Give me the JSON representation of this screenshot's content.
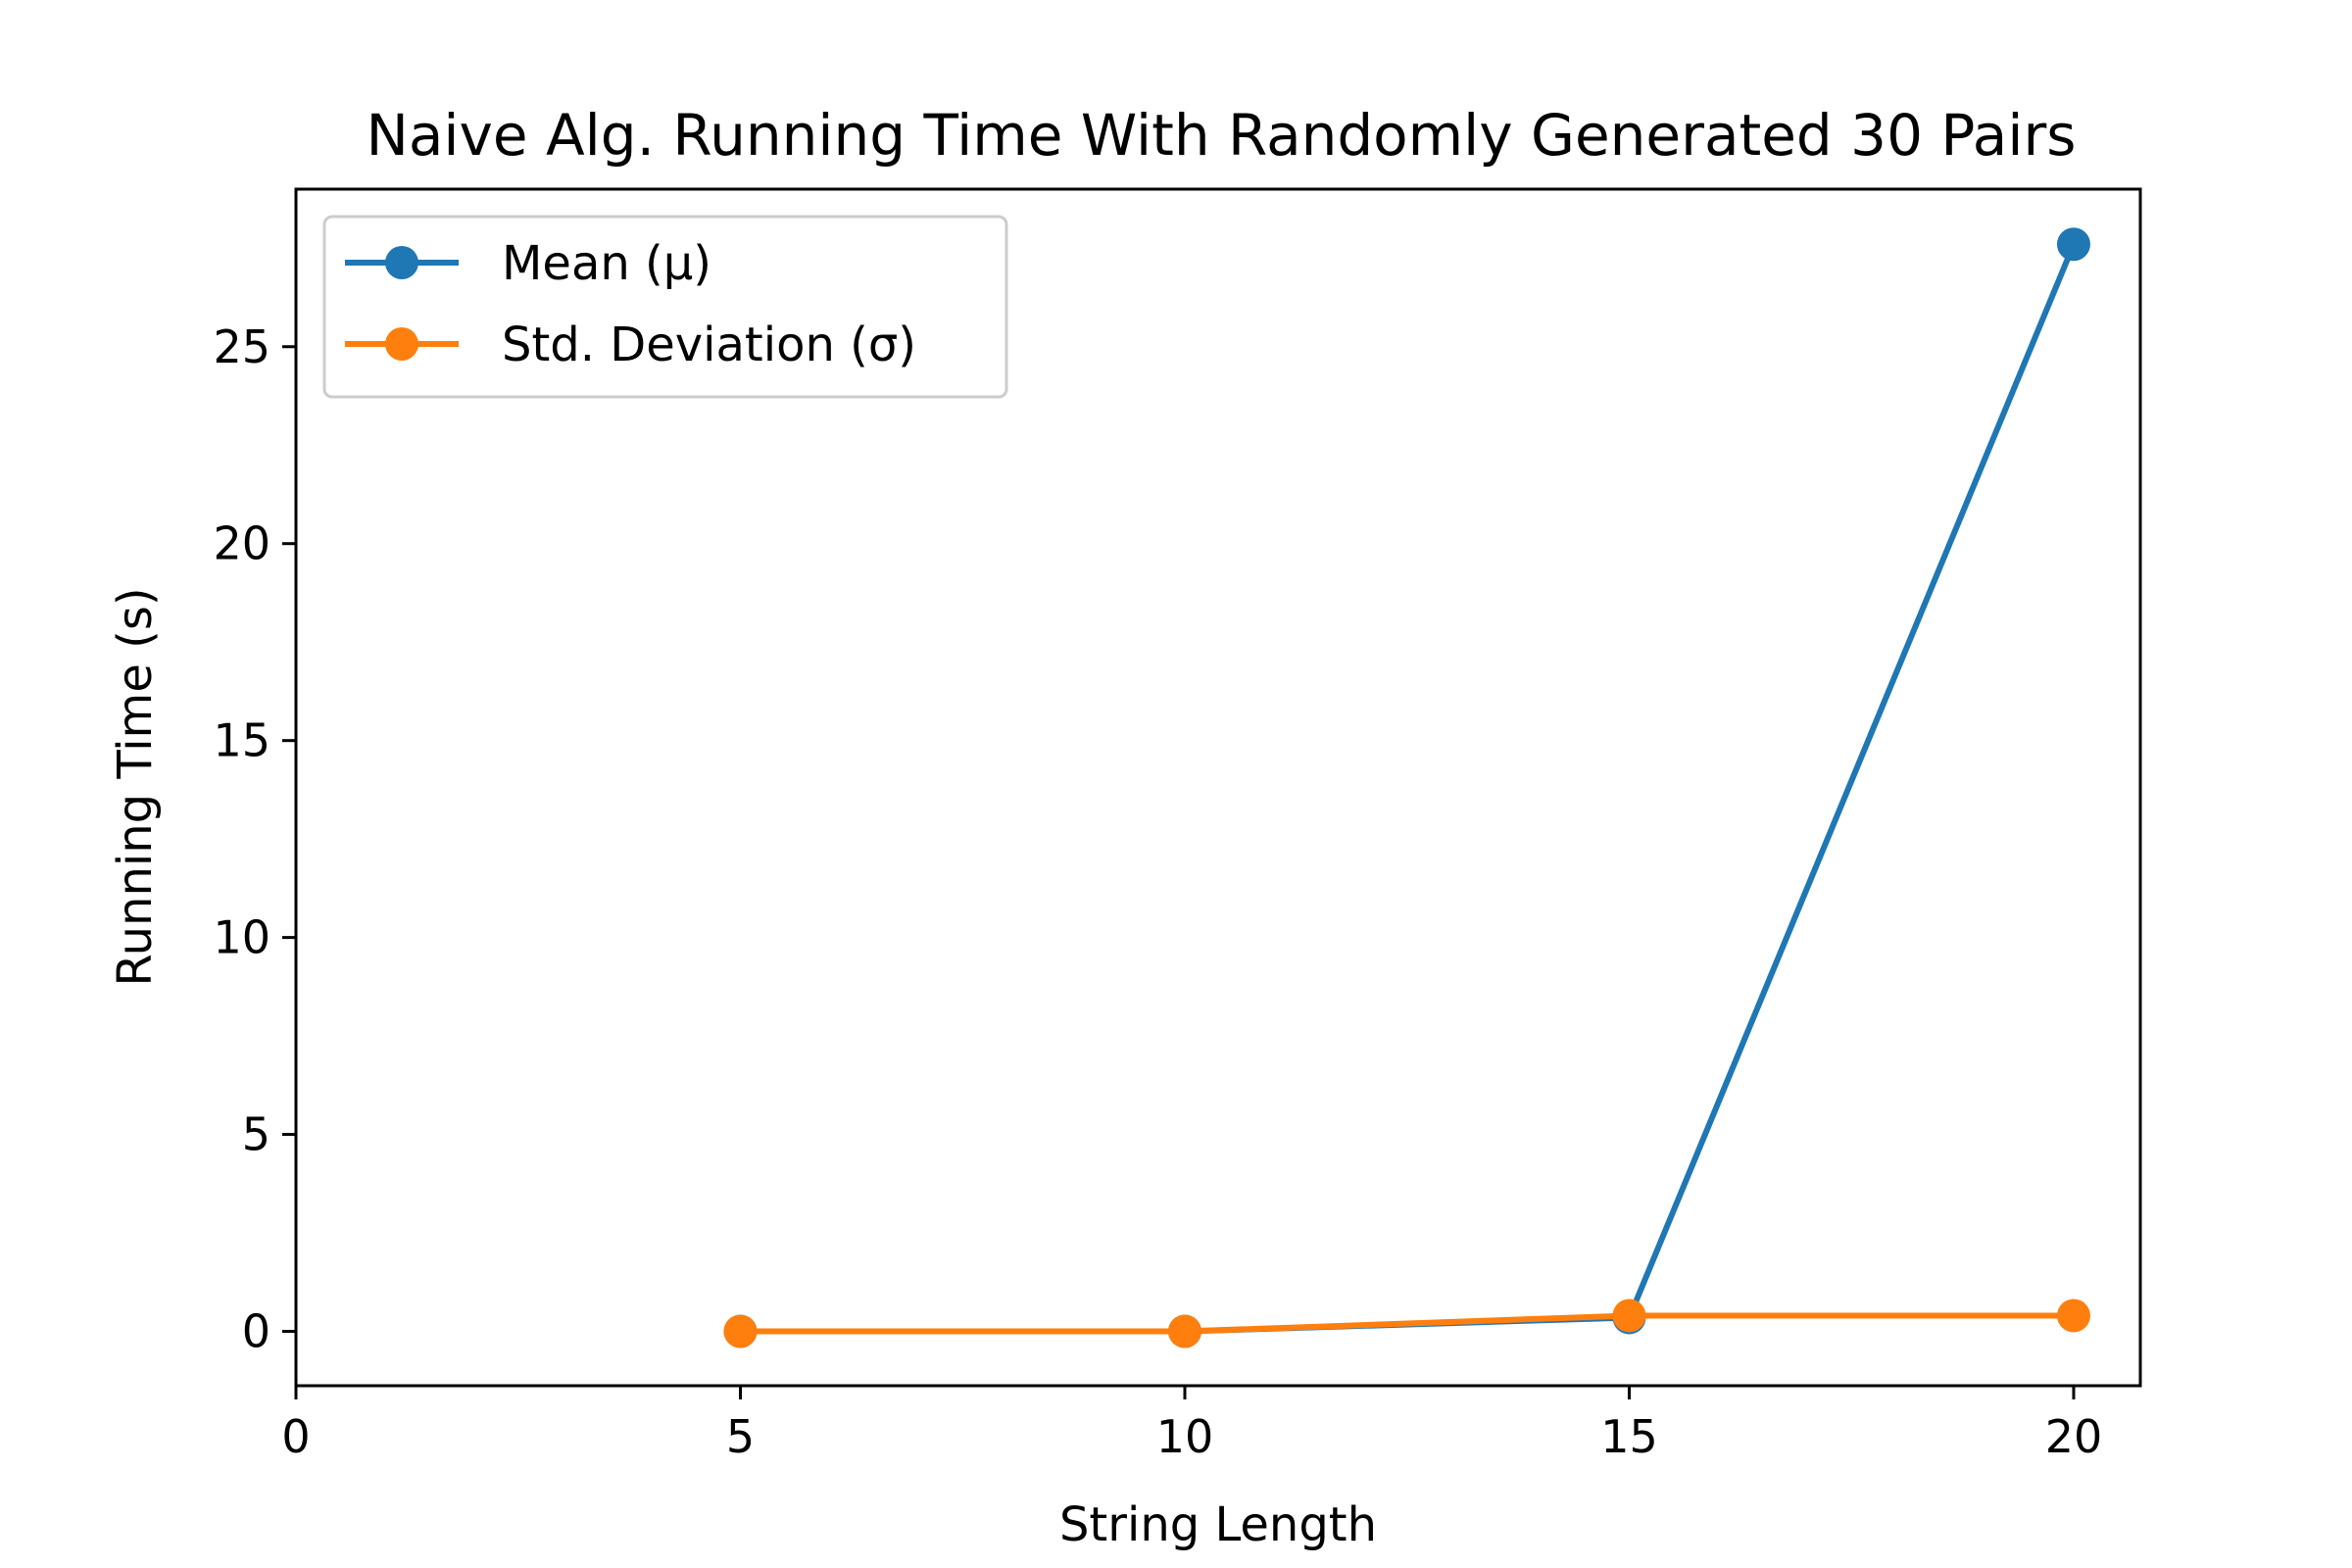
{
  "chart_data": {
    "type": "line",
    "title": "Naive Alg. Running Time With Randomly Generated 30 Pairs",
    "xlabel": "String Length",
    "ylabel": "Running Time (s)",
    "xlim": [
      0,
      20.75
    ],
    "ylim": [
      -1.38,
      29.0
    ],
    "xticks": [
      0,
      5,
      10,
      15,
      20
    ],
    "yticks": [
      0,
      5,
      10,
      15,
      20,
      25
    ],
    "grid": false,
    "legend_position": "top-left",
    "x": [
      5,
      10,
      15,
      20
    ],
    "series": [
      {
        "name": "Mean (μ)",
        "color": "#1f77b4",
        "values": [
          0.0,
          0.0,
          0.35,
          27.6
        ]
      },
      {
        "name": "Std. Deviation (σ)",
        "color": "#ff7f0e",
        "values": [
          0.0,
          0.0,
          0.4,
          0.4
        ]
      }
    ]
  }
}
